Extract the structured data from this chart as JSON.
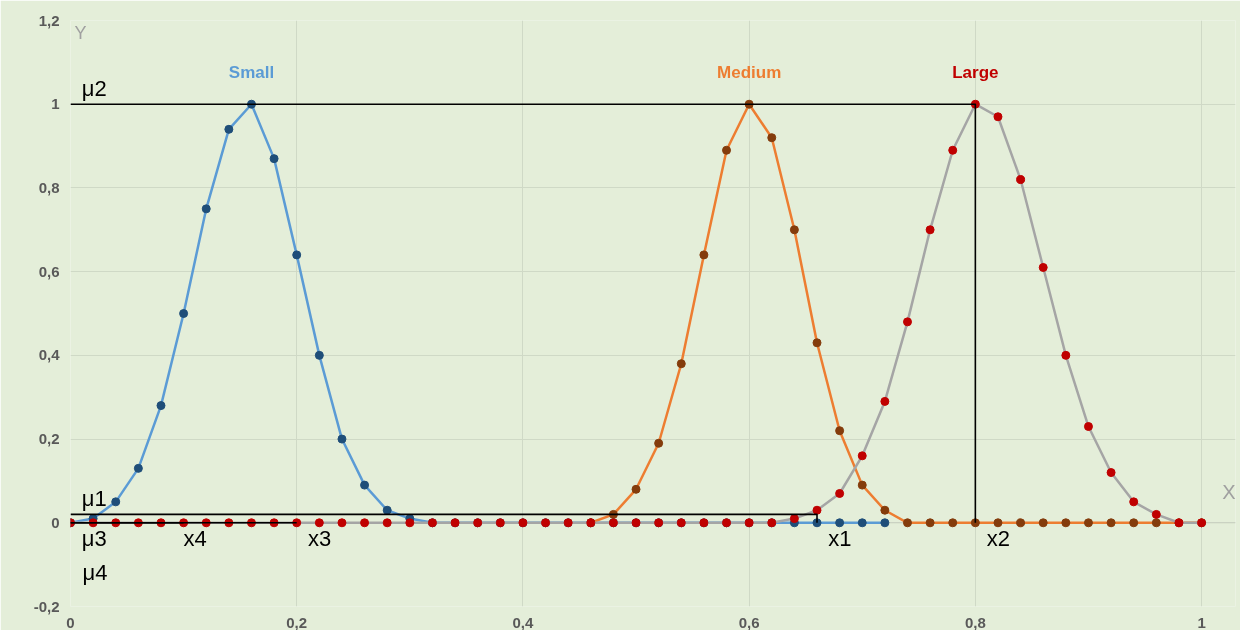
{
  "chart_data": {
    "type": "line",
    "xlabel": "X",
    "ylabel": "Y",
    "xlim": [
      0,
      1.03
    ],
    "ylim": [
      -0.2,
      1.2
    ],
    "xticks": [
      0,
      {
        "value": 0.2,
        "label": "0,2"
      },
      {
        "value": 0.4,
        "label": "0,4"
      },
      {
        "value": 0.6,
        "label": "0,6"
      },
      {
        "value": 0.8,
        "label": "0,8"
      },
      1
    ],
    "yticks": [
      {
        "value": -0.2,
        "label": "-0,2"
      },
      0,
      {
        "value": 0.2,
        "label": "0,2"
      },
      {
        "value": 0.4,
        "label": "0,4"
      },
      {
        "value": 0.6,
        "label": "0,6"
      },
      {
        "value": 0.8,
        "label": "0,8"
      },
      1,
      {
        "value": 1.2,
        "label": "1,2"
      }
    ],
    "grid": true,
    "marker": "circle",
    "line_style": "solid",
    "series": [
      {
        "name": "Small",
        "color": "#5b9bd5",
        "colors": [
          "#1f4e79",
          "#1f4e79",
          "#1f4e79",
          "#1f4e79",
          "#1f4e79",
          "#1f4e79",
          "#1f4e79",
          "#1f4e79",
          "#1f4e79",
          "#1f4e79",
          "#1f4e79",
          "#1f4e79",
          "#1f4e79",
          "#1f4e79",
          "#1f4e79",
          "#1f4e79",
          "#1f4e79",
          "#1f4e79",
          "#1f4e79",
          "#1f4e79",
          "#1f4e79",
          "#1f4e79",
          "#1f4e79",
          "#1f4e79",
          "#1f4e79",
          "#1f4e79",
          "#1f4e79",
          "#1f4e79",
          "#1f4e79",
          "#1f4e79",
          "#1f4e79",
          "#1f4e79",
          "#1f4e79",
          "#1f4e79",
          "#1f4e79",
          "#1f4e79",
          "#1f4e79"
        ],
        "x": [
          0,
          0.02,
          0.04,
          0.06,
          0.08,
          0.1,
          0.12,
          0.14,
          0.16,
          0.18,
          0.2,
          0.22,
          0.24,
          0.26,
          0.28,
          0.3,
          0.32,
          0.34,
          0.36,
          0.38,
          0.4,
          0.42,
          0.44,
          0.46,
          0.48,
          0.5,
          0.52,
          0.54,
          0.56,
          0.58,
          0.6,
          0.62,
          0.64,
          0.66,
          0.68,
          0.7,
          0.72
        ],
        "values": [
          0,
          0.01,
          0.05,
          0.13,
          0.28,
          0.5,
          0.75,
          0.94,
          1,
          0.87,
          0.64,
          0.4,
          0.2,
          0.09,
          0.03,
          0.01,
          0,
          0,
          0,
          0,
          0,
          0,
          0,
          0,
          0,
          0,
          0,
          0,
          0,
          0,
          0,
          0,
          0,
          0,
          0,
          0,
          0
        ]
      },
      {
        "name": "Medium",
        "color": "#ed7d31",
        "colors": [
          "#843c0c",
          "#843c0c",
          "#843c0c",
          "#843c0c",
          "#843c0c",
          "#843c0c",
          "#843c0c",
          "#843c0c",
          "#843c0c",
          "#843c0c",
          "#843c0c",
          "#843c0c",
          "#843c0c",
          "#843c0c",
          "#843c0c",
          "#843c0c",
          "#843c0c",
          "#843c0c",
          "#843c0c",
          "#843c0c",
          "#843c0c",
          "#843c0c",
          "#843c0c",
          "#843c0c",
          "#843c0c",
          "#843c0c",
          "#843c0c",
          "#843c0c"
        ],
        "x": [
          0.46,
          0.48,
          0.5,
          0.52,
          0.54,
          0.56,
          0.58,
          0.6,
          0.62,
          0.64,
          0.66,
          0.68,
          0.7,
          0.72,
          0.74,
          0.76,
          0.78,
          0.8,
          0.82,
          0.84,
          0.86,
          0.88,
          0.9,
          0.92,
          0.94,
          0.96,
          0.98,
          1
        ],
        "values": [
          0,
          0.02,
          0.08,
          0.19,
          0.38,
          0.64,
          0.89,
          1,
          0.92,
          0.7,
          0.43,
          0.22,
          0.09,
          0.03,
          0,
          0,
          0,
          0,
          0,
          0,
          0,
          0,
          0,
          0,
          0,
          0,
          0,
          0
        ]
      },
      {
        "name": "Large",
        "color": "#a5a5a5",
        "colors": [
          "#c00000",
          "#c00000",
          "#c00000",
          "#c00000",
          "#c00000",
          "#c00000",
          "#c00000",
          "#c00000",
          "#c00000",
          "#c00000",
          "#c00000",
          "#c00000",
          "#c00000",
          "#c00000",
          "#c00000",
          "#c00000",
          "#c00000",
          "#c00000",
          "#c00000",
          "#c00000",
          "#c00000",
          "#c00000",
          "#c00000",
          "#c00000",
          "#c00000",
          "#c00000",
          "#c00000",
          "#c00000",
          "#c00000",
          "#c00000",
          "#c00000",
          "#c00000",
          "#c00000",
          "#c00000",
          "#c00000",
          "#c00000",
          "#c00000",
          "#c00000",
          "#c00000",
          "#c00000",
          "#c00000",
          "#c00000",
          "#c00000",
          "#c00000",
          "#c00000",
          "#c00000",
          "#c00000",
          "#c00000",
          "#c00000",
          "#c00000",
          "#c00000"
        ],
        "x": [
          0,
          0.02,
          0.04,
          0.06,
          0.08,
          0.1,
          0.12,
          0.14,
          0.16,
          0.18,
          0.2,
          0.22,
          0.24,
          0.26,
          0.28,
          0.3,
          0.32,
          0.34,
          0.36,
          0.38,
          0.4,
          0.42,
          0.44,
          0.46,
          0.48,
          0.5,
          0.52,
          0.54,
          0.56,
          0.58,
          0.6,
          0.62,
          0.64,
          0.66,
          0.68,
          0.7,
          0.72,
          0.74,
          0.76,
          0.78,
          0.8,
          0.82,
          0.84,
          0.86,
          0.88,
          0.9,
          0.92,
          0.94,
          0.96,
          0.98,
          1
        ],
        "values": [
          0,
          0,
          0,
          0,
          0,
          0,
          0,
          0,
          0,
          0,
          0,
          0,
          0,
          0,
          0,
          0,
          0,
          0,
          0,
          0,
          0,
          0,
          0,
          0,
          0,
          0,
          0,
          0,
          0,
          0,
          0,
          0,
          0.01,
          0.03,
          0.07,
          0.16,
          0.29,
          0.48,
          0.7,
          0.89,
          1,
          0.97,
          0.82,
          0.61,
          0.4,
          0.23,
          0.12,
          0.05,
          0.02,
          0,
          0
        ]
      },
      {
        "color": "#000000",
        "marker": "none",
        "x": [
          0,
          0.8,
          0.8
        ],
        "values": [
          1,
          1,
          0
        ]
      },
      {
        "color": "#000000",
        "marker": "none",
        "x": [
          0,
          0.66,
          0.66
        ],
        "values": [
          0.02,
          0.02,
          0
        ]
      },
      {
        "color": "#000000",
        "marker": "none",
        "x": [
          0,
          0.2
        ],
        "values": [
          0,
          0
        ]
      },
      {
        "color": "#000000",
        "marker": "none",
        "x": [
          0,
          0.1
        ],
        "values": [
          0,
          0
        ]
      }
    ],
    "annotations": [
      {
        "text": "μ2",
        "x": 0.01,
        "y": 1
      },
      {
        "text": "μ1",
        "x": 0.01,
        "y": 0.02
      },
      {
        "text": "μ3",
        "x": 0.01,
        "y": 0
      },
      "μ4",
      {
        "text": "x4",
        "x": 0.1,
        "y": 0
      },
      {
        "text": "x3",
        "x": 0.21,
        "y": 0
      },
      {
        "text": "x1",
        "x": 0.67,
        "y": 0
      },
      {
        "text": "x2",
        "x": 0.81,
        "y": 0
      }
    ]
  }
}
